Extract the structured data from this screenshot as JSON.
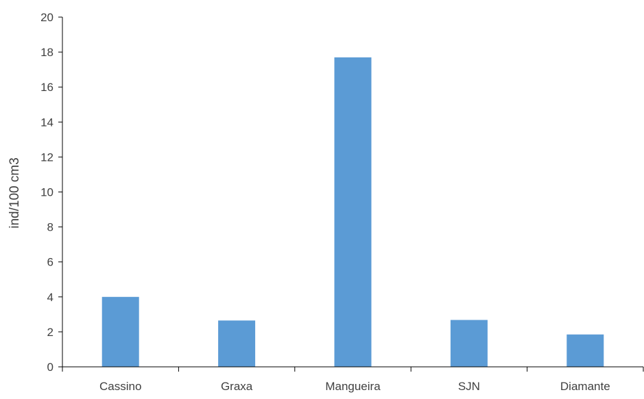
{
  "chart_data": {
    "type": "bar",
    "title": "",
    "xlabel": "",
    "ylabel": "ind/100 cm3",
    "categories": [
      "Cassino",
      "Graxa",
      "Mangueira",
      "SJN",
      "Diamante"
    ],
    "values": [
      4.0,
      2.65,
      17.7,
      2.68,
      1.85
    ],
    "ylim": [
      0,
      20
    ],
    "yticks": [
      "0",
      "2",
      "4",
      "6",
      "8",
      "10",
      "12",
      "14",
      "16",
      "18",
      "20"
    ],
    "grid": false,
    "legend": "none",
    "bar_color": "#5B9BD5",
    "axis_color": "#000000",
    "text_color": "#404040"
  }
}
